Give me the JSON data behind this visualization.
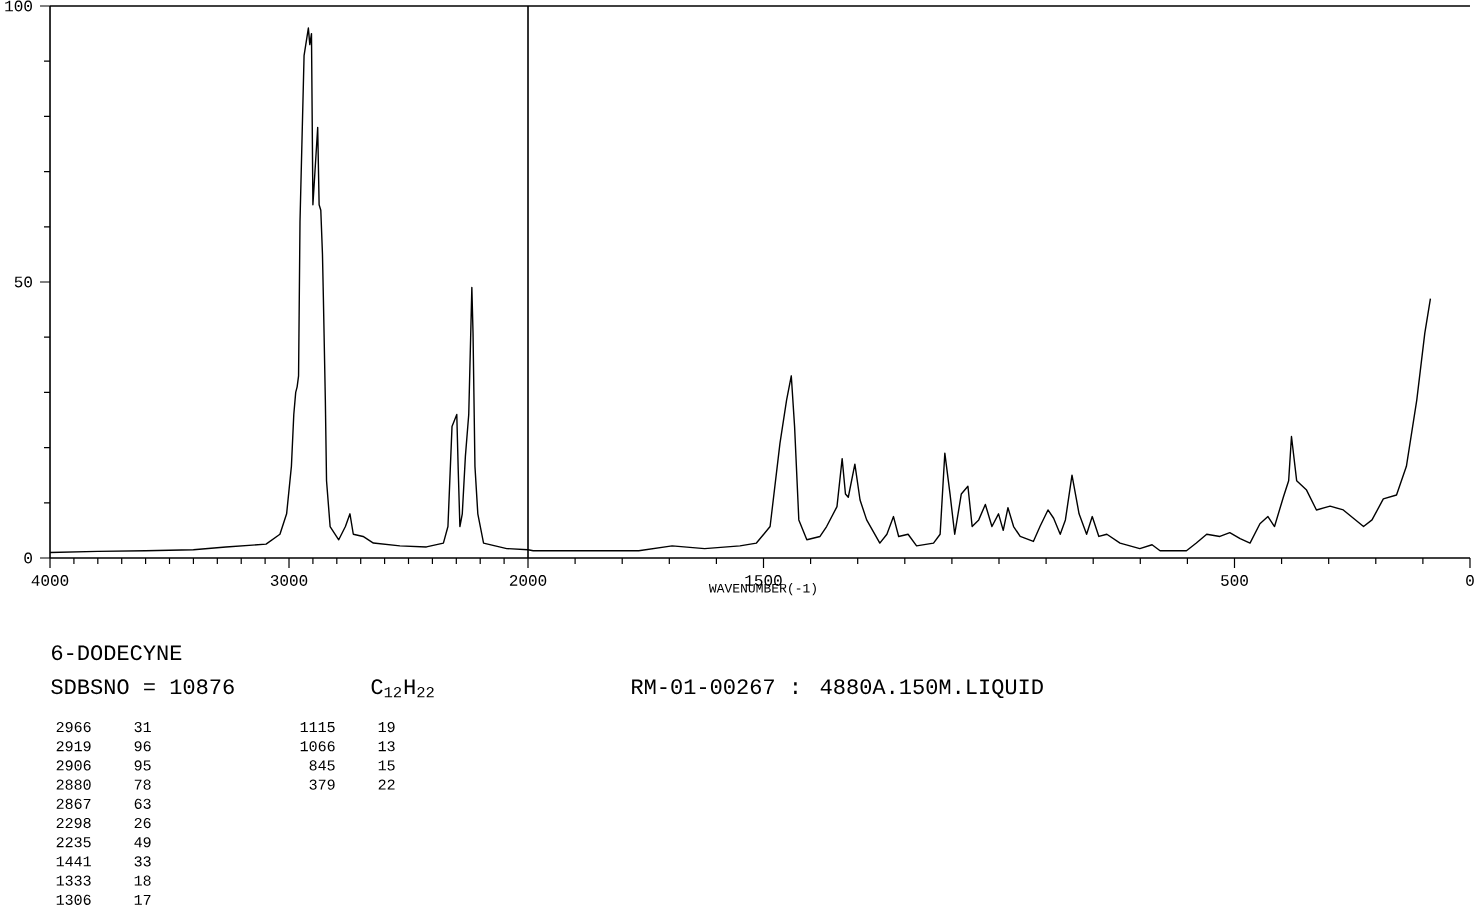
{
  "chart_data": [
    {
      "type": "line",
      "title": "6-DODECYNE",
      "subtitle": "SDBSNO = 10876",
      "annotations": [
        "C$_{12}$H$_{22}$",
        "RM-01-00267 : 4880A.150M.LIQUID",
        "2966",
        "31",
        "2919",
        "96",
        "2906",
        "95",
        "2880",
        "78",
        "2867",
        "63",
        "2298",
        "26",
        "2235",
        "49",
        "1441",
        "33",
        "1333",
        "18",
        "1306",
        "17",
        "1115",
        "19",
        "1066",
        "13",
        "845",
        "15",
        "379",
        "22"
      ],
      "x": [
        4000,
        3800,
        3600,
        3400,
        3264,
        3096,
        3038,
        3010,
        2990,
        2980,
        2972,
        2966,
        2960,
        2954,
        2937,
        2919,
        2913,
        2906,
        2900,
        2880,
        2874,
        2867,
        2860,
        2856,
        2848,
        2843,
        2828,
        2792,
        2764,
        2745,
        2731,
        2690,
        2647,
        2536,
        2425,
        2354,
        2335,
        2318,
        2298,
        2292,
        2285,
        2275,
        2262,
        2248,
        2240,
        2235,
        2230,
        2222,
        2210,
        2186,
        2089,
        2000
      ],
      "values": [
        1.0,
        1.2,
        1.3,
        1.5,
        2.0,
        2.5,
        4.3,
        8,
        16.6,
        26,
        30,
        31,
        33,
        61,
        91,
        96,
        93,
        95,
        64,
        78,
        64,
        63,
        55,
        46.7,
        28.6,
        14,
        5.7,
        3.3,
        5.7,
        8,
        4.3,
        3.9,
        2.7,
        2.2,
        2.0,
        2.7,
        5.7,
        23.8,
        26,
        16,
        5.7,
        8,
        18.4,
        26,
        40,
        49,
        40.7,
        16.6,
        8,
        2.7,
        1.7,
        1.5
      ],
      "color": "#000000",
      "xlim": [
        4000,
        2000
      ],
      "ylim": [
        0,
        100
      ],
      "xticks": [
        4000,
        {
          "value": 3900,
          "label": null
        },
        {
          "value": 3800,
          "label": null
        },
        {
          "value": 3700,
          "label": null
        },
        {
          "value": 3600,
          "label": null
        },
        {
          "value": 3500,
          "label": null
        },
        {
          "value": 3400,
          "label": null
        },
        {
          "value": 3300,
          "label": null
        },
        {
          "value": 3200,
          "label": null
        },
        {
          "value": 3100,
          "label": null
        },
        3000,
        {
          "value": 2900,
          "label": null
        },
        {
          "value": 2800,
          "label": null
        },
        {
          "value": 2700,
          "label": null
        },
        {
          "value": 2600,
          "label": null
        },
        {
          "value": 2500,
          "label": null
        },
        {
          "value": 2400,
          "label": null
        },
        {
          "value": 2300,
          "label": null
        },
        {
          "value": 2200,
          "label": null
        },
        {
          "value": 2100,
          "label": null
        },
        2000
      ],
      "yticks": [
        0,
        {
          "value": 10,
          "label": null
        },
        {
          "value": 20,
          "label": null
        },
        {
          "value": 30,
          "label": null
        },
        {
          "value": 40,
          "label": null
        },
        50,
        {
          "value": 60,
          "label": null
        },
        {
          "value": 70,
          "label": null
        },
        {
          "value": 80,
          "label": null
        },
        {
          "value": 90,
          "label": null
        },
        100
      ]
    },
    {
      "type": "line",
      "xlabel": "WAVENUMBER(-1)",
      "x": [
        2000,
        1989,
        1765,
        1694,
        1625,
        1550,
        1515,
        1486,
        1465,
        1451,
        1441,
        1434,
        1425,
        1408,
        1380,
        1366,
        1344,
        1333,
        1326,
        1320,
        1306,
        1295,
        1281,
        1253,
        1238,
        1224,
        1213,
        1193,
        1175,
        1139,
        1125,
        1115,
        1104,
        1094,
        1080,
        1066,
        1057,
        1043,
        1029,
        1015,
        1001,
        991,
        981,
        969,
        955,
        927,
        913,
        896,
        884,
        870,
        859,
        845,
        830,
        814,
        802,
        788,
        771,
        743,
        701,
        675,
        658,
        602,
        581,
        559,
        531,
        510,
        488,
        467,
        446,
        429,
        415,
        396,
        385,
        379,
        368,
        347,
        326,
        297,
        269,
        226,
        208,
        184,
        156,
        135,
        113,
        96,
        84
      ],
      "values": [
        1.5,
        1.3,
        1.3,
        2.2,
        1.7,
        2.2,
        2.7,
        5.7,
        20.8,
        28.6,
        33,
        23.8,
        6.9,
        3.3,
        3.9,
        5.7,
        9.3,
        18,
        11.6,
        11,
        17,
        10.5,
        6.9,
        2.7,
        4.3,
        7.5,
        3.9,
        4.3,
        2.2,
        2.7,
        4.3,
        19,
        11.6,
        4.3,
        11.6,
        13,
        5.7,
        6.9,
        9.7,
        5.7,
        8,
        5,
        9.1,
        5.7,
        3.9,
        3,
        5.7,
        8.7,
        7.2,
        4.3,
        6.9,
        15,
        8,
        4.3,
        7.5,
        3.9,
        4.3,
        2.7,
        1.7,
        2.4,
        1.3,
        1.3,
        2.7,
        4.3,
        3.9,
        4.6,
        3.5,
        2.7,
        6.2,
        7.5,
        5.7,
        11.1,
        14,
        22,
        14,
        12.3,
        8.7,
        9.4,
        8.7,
        5.7,
        6.9,
        10.7,
        11.4,
        16.6,
        28.6,
        40.7,
        47
      ],
      "color": "#000000",
      "xlim": [
        2000,
        0
      ],
      "ylim": [
        0,
        100
      ],
      "tick_labels": "x",
      "xticks": [
        {
          "value": 1900,
          "label": null
        },
        {
          "value": 1800,
          "label": null
        },
        {
          "value": 1700,
          "label": null
        },
        {
          "value": 1600,
          "label": null
        },
        1500,
        {
          "value": 1400,
          "label": null
        },
        {
          "value": 1300,
          "label": null
        },
        {
          "value": 1200,
          "label": null
        },
        {
          "value": 1100,
          "label": null
        },
        {
          "value": 1000,
          "label": null
        },
        {
          "value": 900,
          "label": null
        },
        {
          "value": 800,
          "label": null
        },
        {
          "value": 700,
          "label": null
        },
        {
          "value": 600,
          "label": null
        },
        500,
        {
          "value": 400,
          "label": null
        },
        {
          "value": 300,
          "label": null
        },
        {
          "value": 200,
          "label": null
        },
        {
          "value": 100,
          "label": null
        },
        0
      ]
    }
  ]
}
